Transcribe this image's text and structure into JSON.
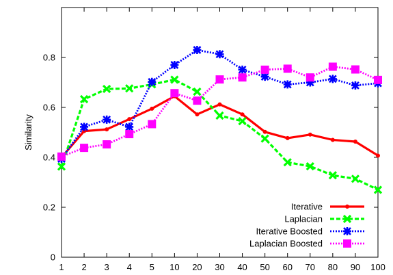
{
  "chart_data": {
    "type": "line",
    "title": "",
    "xlabel": "",
    "ylabel": "Similarity",
    "x": [
      "1",
      "2",
      "3",
      "4",
      "5",
      "10",
      "20",
      "30",
      "40",
      "50",
      "60",
      "70",
      "80",
      "90",
      "100"
    ],
    "ylim": [
      0,
      1
    ],
    "yticks": [
      "0",
      "0.2",
      "0.4",
      "0.6",
      "0.8"
    ],
    "grid": false,
    "legend_position": "bottom-right",
    "series": [
      {
        "name": "Iterative",
        "color": "#ff0000",
        "line_style": "solid",
        "marker": "dot",
        "values": [
          0.4,
          0.505,
          0.512,
          0.553,
          0.595,
          0.645,
          0.572,
          0.612,
          0.572,
          0.502,
          0.477,
          0.491,
          0.47,
          0.463,
          0.407
        ]
      },
      {
        "name": "Laplacian",
        "color": "#00ff00",
        "line_style": "dashed",
        "marker": "x",
        "values": [
          0.363,
          0.633,
          0.674,
          0.676,
          0.692,
          0.711,
          0.663,
          0.567,
          0.545,
          0.475,
          0.38,
          0.364,
          0.328,
          0.314,
          0.27
        ]
      },
      {
        "name": "Iterative Boosted",
        "color": "#0000ff",
        "line_style": "dotted",
        "marker": "star",
        "values": [
          0.394,
          0.522,
          0.551,
          0.522,
          0.702,
          0.77,
          0.83,
          0.813,
          0.751,
          0.723,
          0.692,
          0.7,
          0.714,
          0.688,
          0.697
        ]
      },
      {
        "name": "Laplacian Boosted",
        "color": "#ff00ff",
        "line_style": "dotted",
        "marker": "square",
        "values": [
          0.403,
          0.438,
          0.452,
          0.493,
          0.533,
          0.657,
          0.627,
          0.712,
          0.72,
          0.751,
          0.755,
          0.72,
          0.763,
          0.752,
          0.71
        ]
      }
    ]
  }
}
